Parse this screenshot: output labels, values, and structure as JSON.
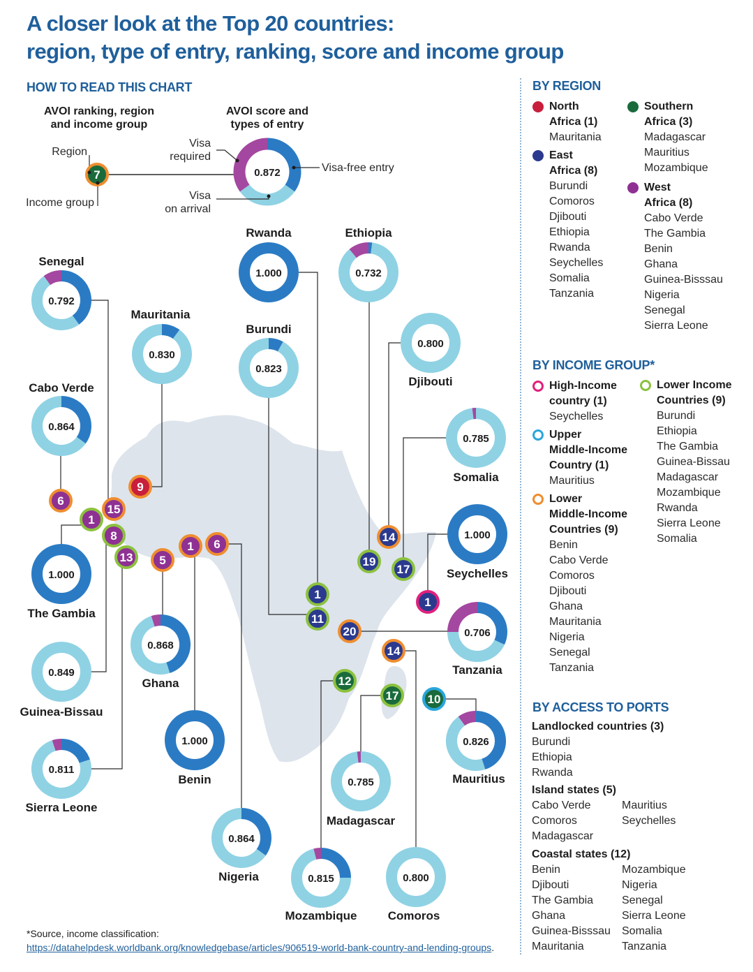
{
  "header": {
    "title_line1": "A closer look at the Top 20 countries:",
    "title_line2": "region, type of entry, ranking, score and income group"
  },
  "legend": {
    "heading": "HOW TO READ THIS CHART",
    "left_caption": [
      "AVOI ranking, region",
      "and income group"
    ],
    "right_caption": [
      "AVOI score and",
      "types of entry"
    ],
    "region_label": "Region",
    "income_label": "Income group",
    "example_rank": "7",
    "example_score": "0.872",
    "visa_required": [
      "Visa",
      "required"
    ],
    "visa_free": "Visa-free entry",
    "visa_on_arrival": [
      "Visa",
      "on arrival"
    ]
  },
  "colors": {
    "visa_free": "#2b7bc4",
    "visa_on_arrival": "#8fd2e4",
    "visa_required": "#a447a0",
    "north_africa": "#c81f3c",
    "east_africa": "#2b3a8f",
    "southern_africa": "#1a6b3c",
    "west_africa": "#8e3193",
    "high_income": "#e0217d",
    "upper_middle_income": "#2aa6dc",
    "lower_middle_income": "#ef8d2f",
    "low_income": "#8cc13f",
    "map": "#dde4ec",
    "title": "#1f5f9b"
  },
  "chart_data": {
    "type": "donut-map",
    "title": "A closer look at the Top 20 countries: region, type of entry, ranking, score and income group",
    "series_order": [
      "visa_free",
      "visa_on_arrival",
      "visa_required"
    ],
    "countries": [
      {
        "name": "Rwanda",
        "rank": "1",
        "region": "east",
        "income": "low",
        "score": "1.000",
        "visa_free": 100,
        "visa_on_arrival": 0,
        "visa_required": 0
      },
      {
        "name": "Ethiopia",
        "rank": "19",
        "region": "east",
        "income": "low",
        "score": "0.732",
        "visa_free": 2,
        "visa_on_arrival": 87,
        "visa_required": 11
      },
      {
        "name": "Senegal",
        "rank": "15",
        "region": "west",
        "income": "lower_middle",
        "score": "0.792",
        "visa_free": 40,
        "visa_on_arrival": 50,
        "visa_required": 10
      },
      {
        "name": "Mauritania",
        "rank": "9",
        "region": "north",
        "income": "lower_middle",
        "score": "0.830",
        "visa_free": 10,
        "visa_on_arrival": 90,
        "visa_required": 0
      },
      {
        "name": "Burundi",
        "rank": "11",
        "region": "east",
        "income": "low",
        "score": "0.823",
        "visa_free": 8,
        "visa_on_arrival": 92,
        "visa_required": 0
      },
      {
        "name": "Djibouti",
        "rank": "14",
        "region": "east",
        "income": "lower_middle",
        "score": "0.800",
        "visa_free": 0,
        "visa_on_arrival": 100,
        "visa_required": 0
      },
      {
        "name": "Cabo Verde",
        "rank": "6",
        "region": "west",
        "income": "lower_middle",
        "score": "0.864",
        "visa_free": 35,
        "visa_on_arrival": 65,
        "visa_required": 0
      },
      {
        "name": "Somalia",
        "rank": "17",
        "region": "east",
        "income": "low",
        "score": "0.785",
        "visa_free": 0,
        "visa_on_arrival": 98,
        "visa_required": 2
      },
      {
        "name": "The Gambia",
        "rank": "1",
        "region": "west",
        "income": "low",
        "score": "1.000",
        "visa_free": 100,
        "visa_on_arrival": 0,
        "visa_required": 0
      },
      {
        "name": "Seychelles",
        "rank": "1",
        "region": "east",
        "income": "high",
        "score": "1.000",
        "visa_free": 100,
        "visa_on_arrival": 0,
        "visa_required": 0
      },
      {
        "name": "Ghana",
        "rank": "5",
        "region": "west",
        "income": "lower_middle",
        "score": "0.868",
        "visa_free": 45,
        "visa_on_arrival": 50,
        "visa_required": 5
      },
      {
        "name": "Tanzania",
        "rank": "20",
        "region": "east",
        "income": "lower_middle",
        "score": "0.706",
        "visa_free": 32,
        "visa_on_arrival": 43,
        "visa_required": 25
      },
      {
        "name": "Guinea-Bissau",
        "rank": "8",
        "region": "west",
        "income": "low",
        "score": "0.849",
        "visa_free": 0,
        "visa_on_arrival": 100,
        "visa_required": 0
      },
      {
        "name": "Benin",
        "rank": "1",
        "region": "west",
        "income": "lower_middle",
        "score": "1.000",
        "visa_free": 100,
        "visa_on_arrival": 0,
        "visa_required": 0
      },
      {
        "name": "Mauritius",
        "rank": "10",
        "region": "southern",
        "income": "upper_middle",
        "score": "0.826",
        "visa_free": 45,
        "visa_on_arrival": 45,
        "visa_required": 10
      },
      {
        "name": "Sierra Leone",
        "rank": "13",
        "region": "west",
        "income": "low",
        "score": "0.811",
        "visa_free": 20,
        "visa_on_arrival": 75,
        "visa_required": 5
      },
      {
        "name": "Madagascar",
        "rank": "17",
        "region": "southern",
        "income": "low",
        "score": "0.785",
        "visa_free": 0,
        "visa_on_arrival": 98,
        "visa_required": 2
      },
      {
        "name": "Nigeria",
        "rank": "6",
        "region": "west",
        "income": "lower_middle",
        "score": "0.864",
        "visa_free": 35,
        "visa_on_arrival": 65,
        "visa_required": 0
      },
      {
        "name": "Mozambique",
        "rank": "12",
        "region": "southern",
        "income": "low",
        "score": "0.815",
        "visa_free": 25,
        "visa_on_arrival": 71,
        "visa_required": 4
      },
      {
        "name": "Comoros",
        "rank": "14",
        "region": "east",
        "income": "lower_middle",
        "score": "0.800",
        "visa_free": 0,
        "visa_on_arrival": 100,
        "visa_required": 0
      }
    ]
  },
  "by_region": {
    "heading": "BY REGION",
    "groups": [
      {
        "key": "north",
        "label": "North\nAfrica (1)",
        "items": [
          "Mauritania"
        ]
      },
      {
        "key": "east",
        "label": "East\nAfrica (8)",
        "items": [
          "Burundi",
          "Comoros",
          "Djibouti",
          "Ethiopia",
          "Rwanda",
          "Seychelles",
          "Somalia",
          "Tanzania"
        ]
      },
      {
        "key": "southern",
        "label": "Southern\nAfrica (3)",
        "items": [
          "Madagascar",
          "Mauritius",
          "Mozambique"
        ]
      },
      {
        "key": "west",
        "label": "West\nAfrica (8)",
        "items": [
          "Cabo Verde",
          "The Gambia",
          "Benin",
          "Ghana",
          "Guinea-Bisssau",
          "Nigeria",
          "Senegal",
          "Sierra Leone"
        ]
      }
    ]
  },
  "by_income": {
    "heading": "BY INCOME GROUP*",
    "groups": [
      {
        "key": "high",
        "label": "High-Income\ncountry (1)",
        "items": [
          "Seychelles"
        ]
      },
      {
        "key": "upper_middle",
        "label": "Upper\nMiddle-Income\nCountry (1)",
        "items": [
          "Mauritius"
        ]
      },
      {
        "key": "lower_middle",
        "label": "Lower\nMiddle-Income\nCountries (9)",
        "items": [
          "Benin",
          "Cabo Verde",
          "Comoros",
          "Djibouti",
          "Ghana",
          "Mauritania",
          "Nigeria",
          "Senegal",
          "Tanzania"
        ]
      },
      {
        "key": "low",
        "label": "Lower Income\nCountries (9)",
        "items": [
          "Burundi",
          "Ethiopia",
          "The Gambia",
          "Guinea-Bissau",
          "Madagascar",
          "Mozambique",
          "Rwanda",
          "Sierra Leone",
          "Somalia"
        ]
      }
    ]
  },
  "by_ports": {
    "heading": "BY ACCESS TO PORTS",
    "groups": [
      {
        "label": "Landlocked countries (3)",
        "col1": [
          "Burundi",
          "Ethiopia",
          "Rwanda"
        ],
        "col2": []
      },
      {
        "label": "Island states (5)",
        "col1": [
          "Cabo Verde",
          "Comoros",
          "Madagascar"
        ],
        "col2": [
          "Mauritius",
          "Seychelles"
        ]
      },
      {
        "label": "Coastal states (12)",
        "col1": [
          "Benin",
          "Djibouti",
          "The Gambia",
          "Ghana",
          "Guinea-Bisssau",
          "Mauritania"
        ],
        "col2": [
          "Mozambique",
          "Nigeria",
          "Senegal",
          "Sierra Leone",
          "Somalia",
          "Tanzania"
        ]
      }
    ]
  },
  "footer": {
    "source_label": "*Source, income classification:",
    "source_url": "https://datahelpdesk.worldbank.org/knowledgebase/articles/906519-world-bank-country-and-lending-groups",
    "source_end": "."
  }
}
